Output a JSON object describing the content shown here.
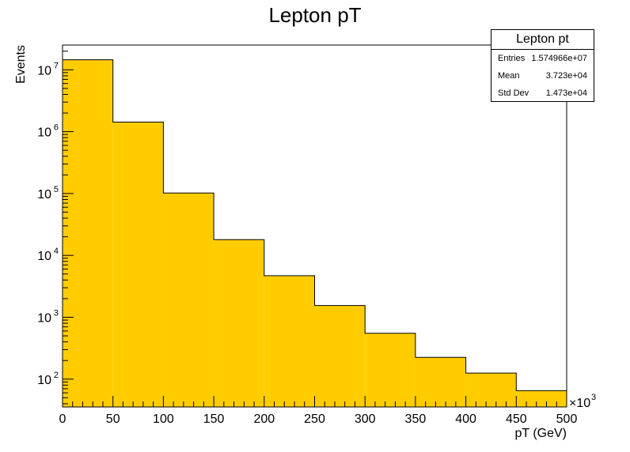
{
  "chart_data": {
    "type": "bar",
    "title": "Lepton pT",
    "xlabel": "pT (GeV)",
    "ylabel": "Events",
    "x_multiplier": "×10",
    "x_multiplier_exp": "3",
    "xlim": [
      0,
      500
    ],
    "ylim_log10": [
      1.55,
      7.4
    ],
    "log_y": true,
    "bin_edges": [
      0,
      50,
      100,
      150,
      200,
      250,
      300,
      350,
      400,
      450,
      500
    ],
    "values": [
      14500000,
      1430000,
      102000,
      18000,
      4700,
      1550,
      550,
      225,
      125,
      65
    ],
    "x_tick_labels": [
      "0",
      "50",
      "100",
      "150",
      "200",
      "250",
      "300",
      "350",
      "400",
      "450",
      "500"
    ],
    "y_tick_labels": [
      {
        "base": "10",
        "exp": "2",
        "decade": 2
      },
      {
        "base": "10",
        "exp": "3",
        "decade": 3
      },
      {
        "base": "10",
        "exp": "4",
        "decade": 4
      },
      {
        "base": "10",
        "exp": "5",
        "decade": 5
      },
      {
        "base": "10",
        "exp": "6",
        "decade": 6
      },
      {
        "base": "10",
        "exp": "7",
        "decade": 7
      }
    ],
    "fill_color": "#ffcc00",
    "line_color": "#000000",
    "grid": false,
    "stats_box": {
      "title": "Lepton pt",
      "rows": [
        {
          "label": "Entries",
          "value": "1.574966e+07"
        },
        {
          "label": "Mean",
          "value": "3.723e+04"
        },
        {
          "label": "Std Dev",
          "value": "1.473e+04"
        }
      ],
      "placement": "top-right"
    }
  }
}
